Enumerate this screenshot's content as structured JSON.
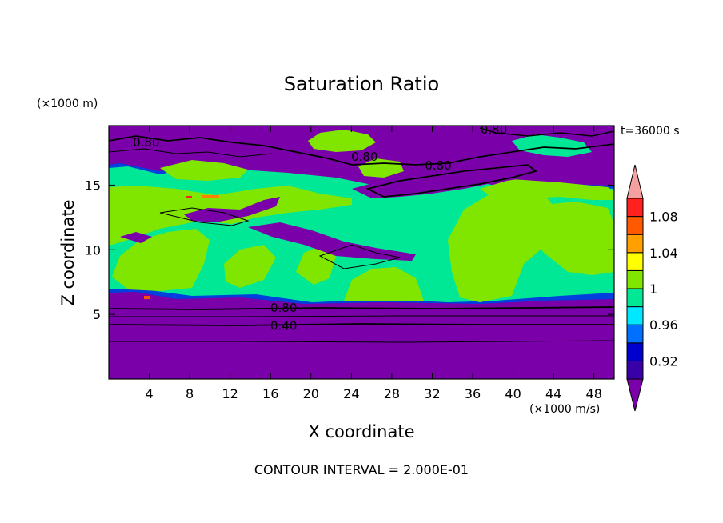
{
  "chart_data": {
    "type": "heatmap",
    "title": "Saturation Ratio",
    "xlabel": "X coordinate",
    "ylabel": "Z coordinate",
    "x_unit": "(×1000 m/s)",
    "y_unit": "(×1000 m)",
    "time_label": "t=36000 s",
    "footer": "CONTOUR INTERVAL = 2.000E-01",
    "xlim": [
      0,
      50
    ],
    "ylim": [
      0,
      19.6
    ],
    "x_ticks": [
      4,
      8,
      12,
      16,
      20,
      24,
      28,
      32,
      36,
      40,
      44,
      48
    ],
    "y_ticks": [
      5,
      10,
      15
    ],
    "colorbar": {
      "levels": [
        0.9,
        0.92,
        0.94,
        0.96,
        0.98,
        1.0,
        1.02,
        1.04,
        1.06,
        1.08,
        1.1
      ],
      "tick_labels": [
        "0.92",
        "0.96",
        "1",
        "1.04",
        "1.08"
      ],
      "tick_values": [
        0.92,
        0.96,
        1.0,
        1.04,
        1.08
      ],
      "colors": [
        "#7a00aa",
        "#3a00a8",
        "#0000cc",
        "#0070ff",
        "#00e8ff",
        "#00e896",
        "#80e600",
        "#ffff00",
        "#ffa000",
        "#ff5a00",
        "#ff2020",
        "#f5a0a0"
      ]
    },
    "contour_labels": [
      {
        "text": "0.80",
        "x": 3.7,
        "z": 18.3
      },
      {
        "text": "0.80",
        "x": 25.3,
        "z": 17.2
      },
      {
        "text": "0.80",
        "x": 32.6,
        "z": 16.5
      },
      {
        "text": "0.80",
        "x": 38.1,
        "z": 19.3
      },
      {
        "text": "0.80",
        "x": 17.3,
        "z": 5.5
      },
      {
        "text": "0.40",
        "x": 17.3,
        "z": 4.1
      }
    ]
  }
}
